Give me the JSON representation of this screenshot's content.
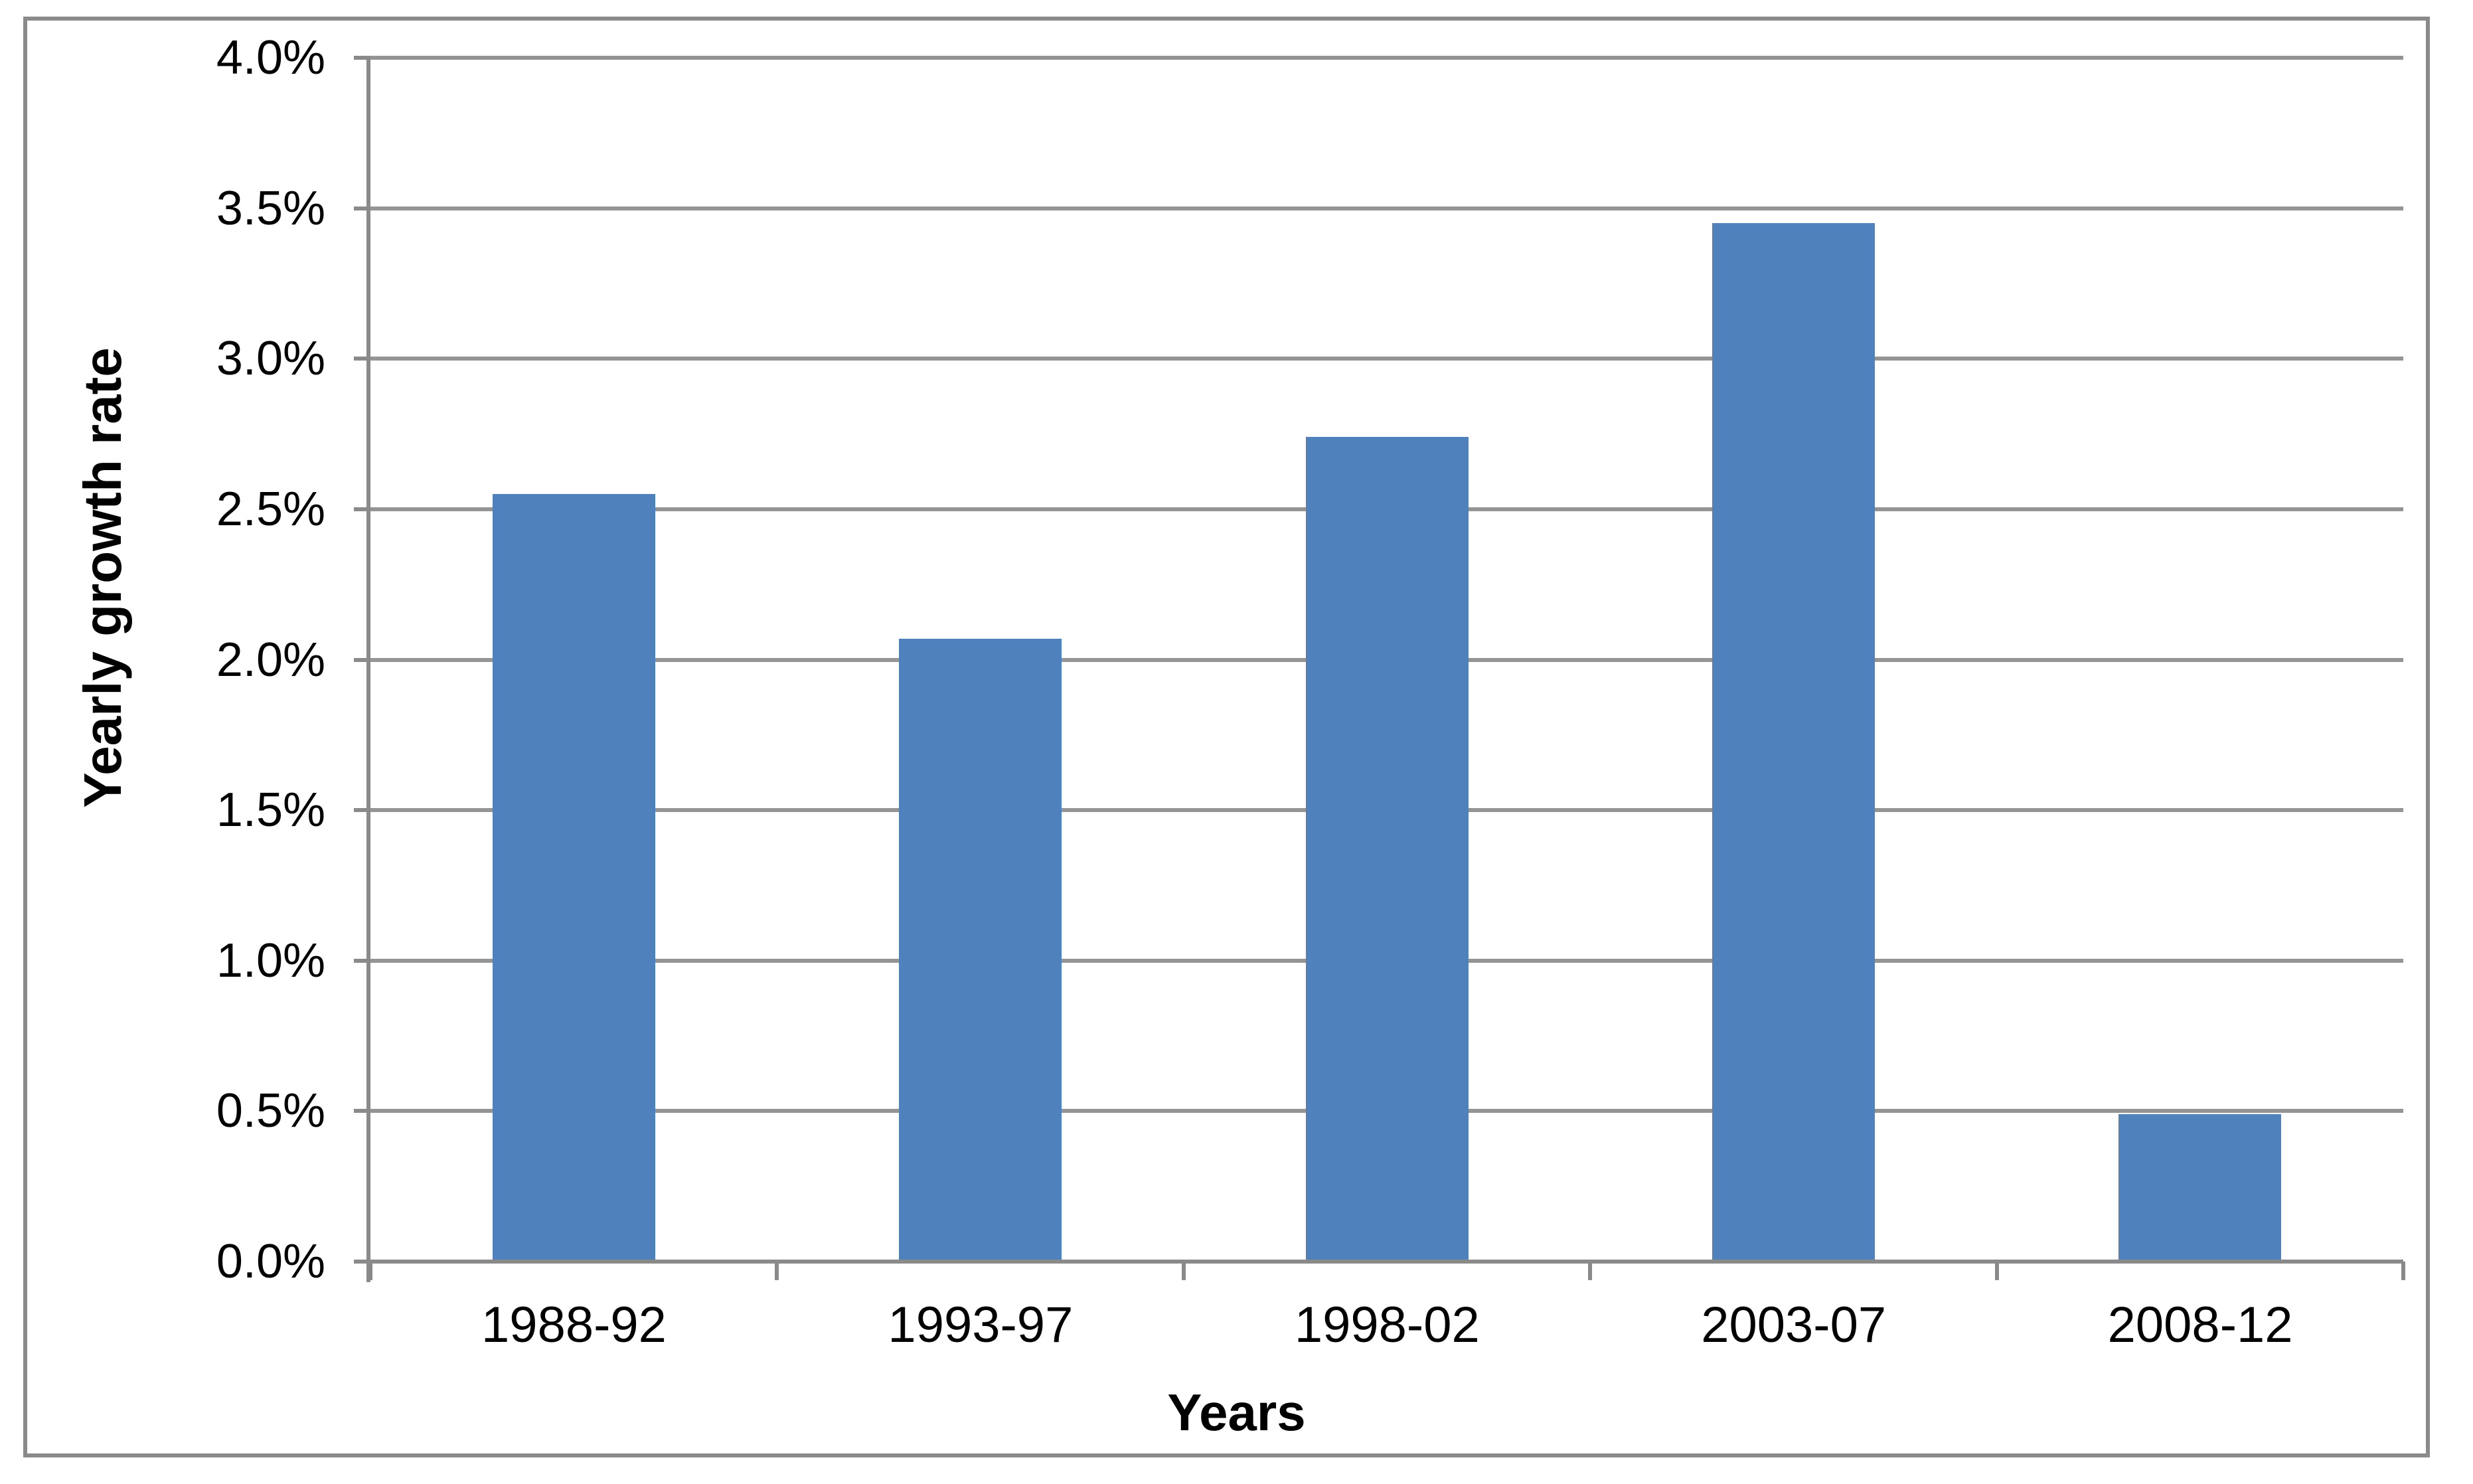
{
  "chart_data": {
    "type": "bar",
    "title": "",
    "categories": [
      "1988-92",
      "1993-97",
      "1998-02",
      "2003-07",
      "2008-12"
    ],
    "values": [
      2.55,
      2.07,
      2.74,
      3.45,
      0.49
    ],
    "xlabel": "Years",
    "ylabel": "Yearly growth rate",
    "y_tick_labels": [
      "0.0%",
      "0.5%",
      "1.0%",
      "1.5%",
      "2.0%",
      "2.5%",
      "3.0%",
      "3.5%",
      "4.0%"
    ],
    "ylim": [
      0,
      4.0
    ],
    "y_major_step": 0.5,
    "grid": true,
    "legend_position": "none",
    "colors": {
      "bar": "#4F81BD",
      "axis": "#8a8a8a",
      "gridline": "#949494",
      "text": "#000000",
      "background": "#FFFFFF"
    }
  }
}
